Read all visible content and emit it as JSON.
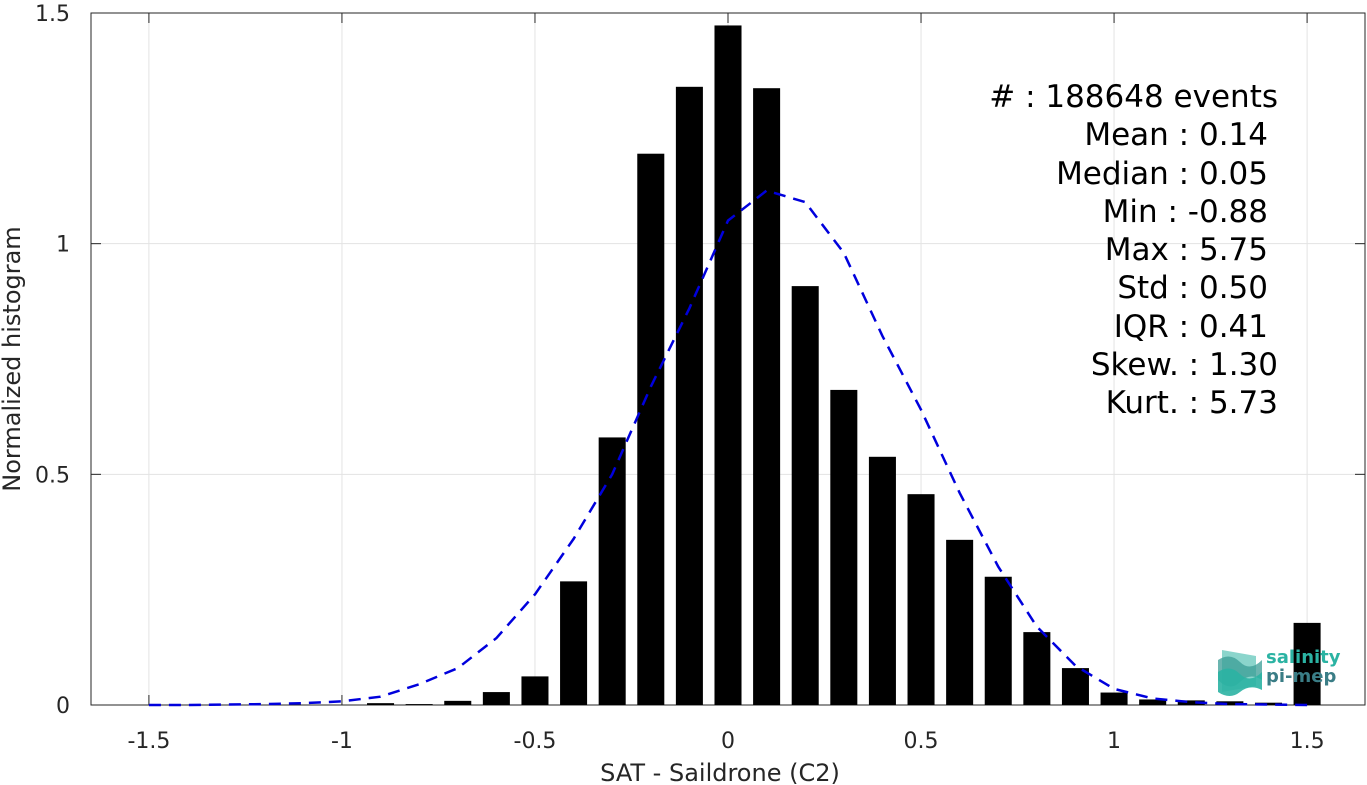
{
  "chart_data": {
    "type": "bar",
    "xlabel": "SAT - Saildrone (C2)",
    "ylabel": "Normalized histogram",
    "xlim": [
      -1.65,
      1.65
    ],
    "ylim": [
      0,
      1.5
    ],
    "xticks": [
      -1.5,
      -1,
      -0.5,
      0,
      0.5,
      1,
      1.5
    ],
    "xtick_labels": [
      "-1.5",
      "-1",
      "-0.5",
      "0",
      "0.5",
      "1",
      "1.5"
    ],
    "yticks": [
      0,
      0.5,
      1,
      1.5
    ],
    "ytick_labels": [
      "0",
      "0.5",
      "1",
      "1.5"
    ],
    "grid": true,
    "bar_width": 0.07,
    "bars": {
      "x": [
        -1.5,
        -1.4,
        -1.3,
        -1.2,
        -1.1,
        -1.0,
        -0.9,
        -0.8,
        -0.7,
        -0.6,
        -0.5,
        -0.4,
        -0.3,
        -0.2,
        -0.1,
        0.0,
        0.1,
        0.2,
        0.3,
        0.4,
        0.5,
        0.6,
        0.7,
        0.8,
        0.9,
        1.0,
        1.1,
        1.2,
        1.3,
        1.4,
        1.5
      ],
      "values": [
        0,
        0,
        0,
        0,
        0,
        0,
        0.004,
        0.002,
        0.009,
        0.028,
        0.062,
        0.268,
        0.58,
        1.195,
        1.34,
        1.473,
        1.337,
        0.908,
        0.683,
        0.538,
        0.457,
        0.358,
        0.278,
        0.158,
        0.08,
        0.027,
        0.012,
        0.01,
        0.008,
        0.005,
        0.178
      ],
      "color": "#000000"
    },
    "fit_curve": {
      "style": "dashed",
      "color": "#0000dd",
      "x": [
        -1.5,
        -1.4,
        -1.3,
        -1.2,
        -1.1,
        -1.0,
        -0.9,
        -0.8,
        -0.7,
        -0.6,
        -0.5,
        -0.4,
        -0.3,
        -0.2,
        -0.1,
        0.0,
        0.1,
        0.2,
        0.3,
        0.4,
        0.5,
        0.6,
        0.7,
        0.8,
        0.9,
        1.0,
        1.1,
        1.2,
        1.3,
        1.4,
        1.5
      ],
      "y": [
        0.0,
        0.0,
        0.001,
        0.002,
        0.004,
        0.008,
        0.018,
        0.045,
        0.08,
        0.145,
        0.24,
        0.36,
        0.5,
        0.69,
        0.86,
        1.05,
        1.115,
        1.09,
        0.98,
        0.8,
        0.64,
        0.46,
        0.3,
        0.17,
        0.085,
        0.035,
        0.014,
        0.006,
        0.002,
        0.001,
        0.0
      ]
    },
    "annotations": [
      "#  : 188648 events",
      "Mean : 0.14",
      "Median : 0.05",
      "Min : -0.88",
      "Max : 5.75",
      "Std : 0.50",
      "IQR : 0.41",
      "Skew. : 1.30",
      "Kurt. : 5.73"
    ]
  },
  "logo": {
    "line1": "salinity",
    "line2": "pi-mep",
    "colors": [
      "#2bb3a3",
      "#3a7d86"
    ]
  }
}
